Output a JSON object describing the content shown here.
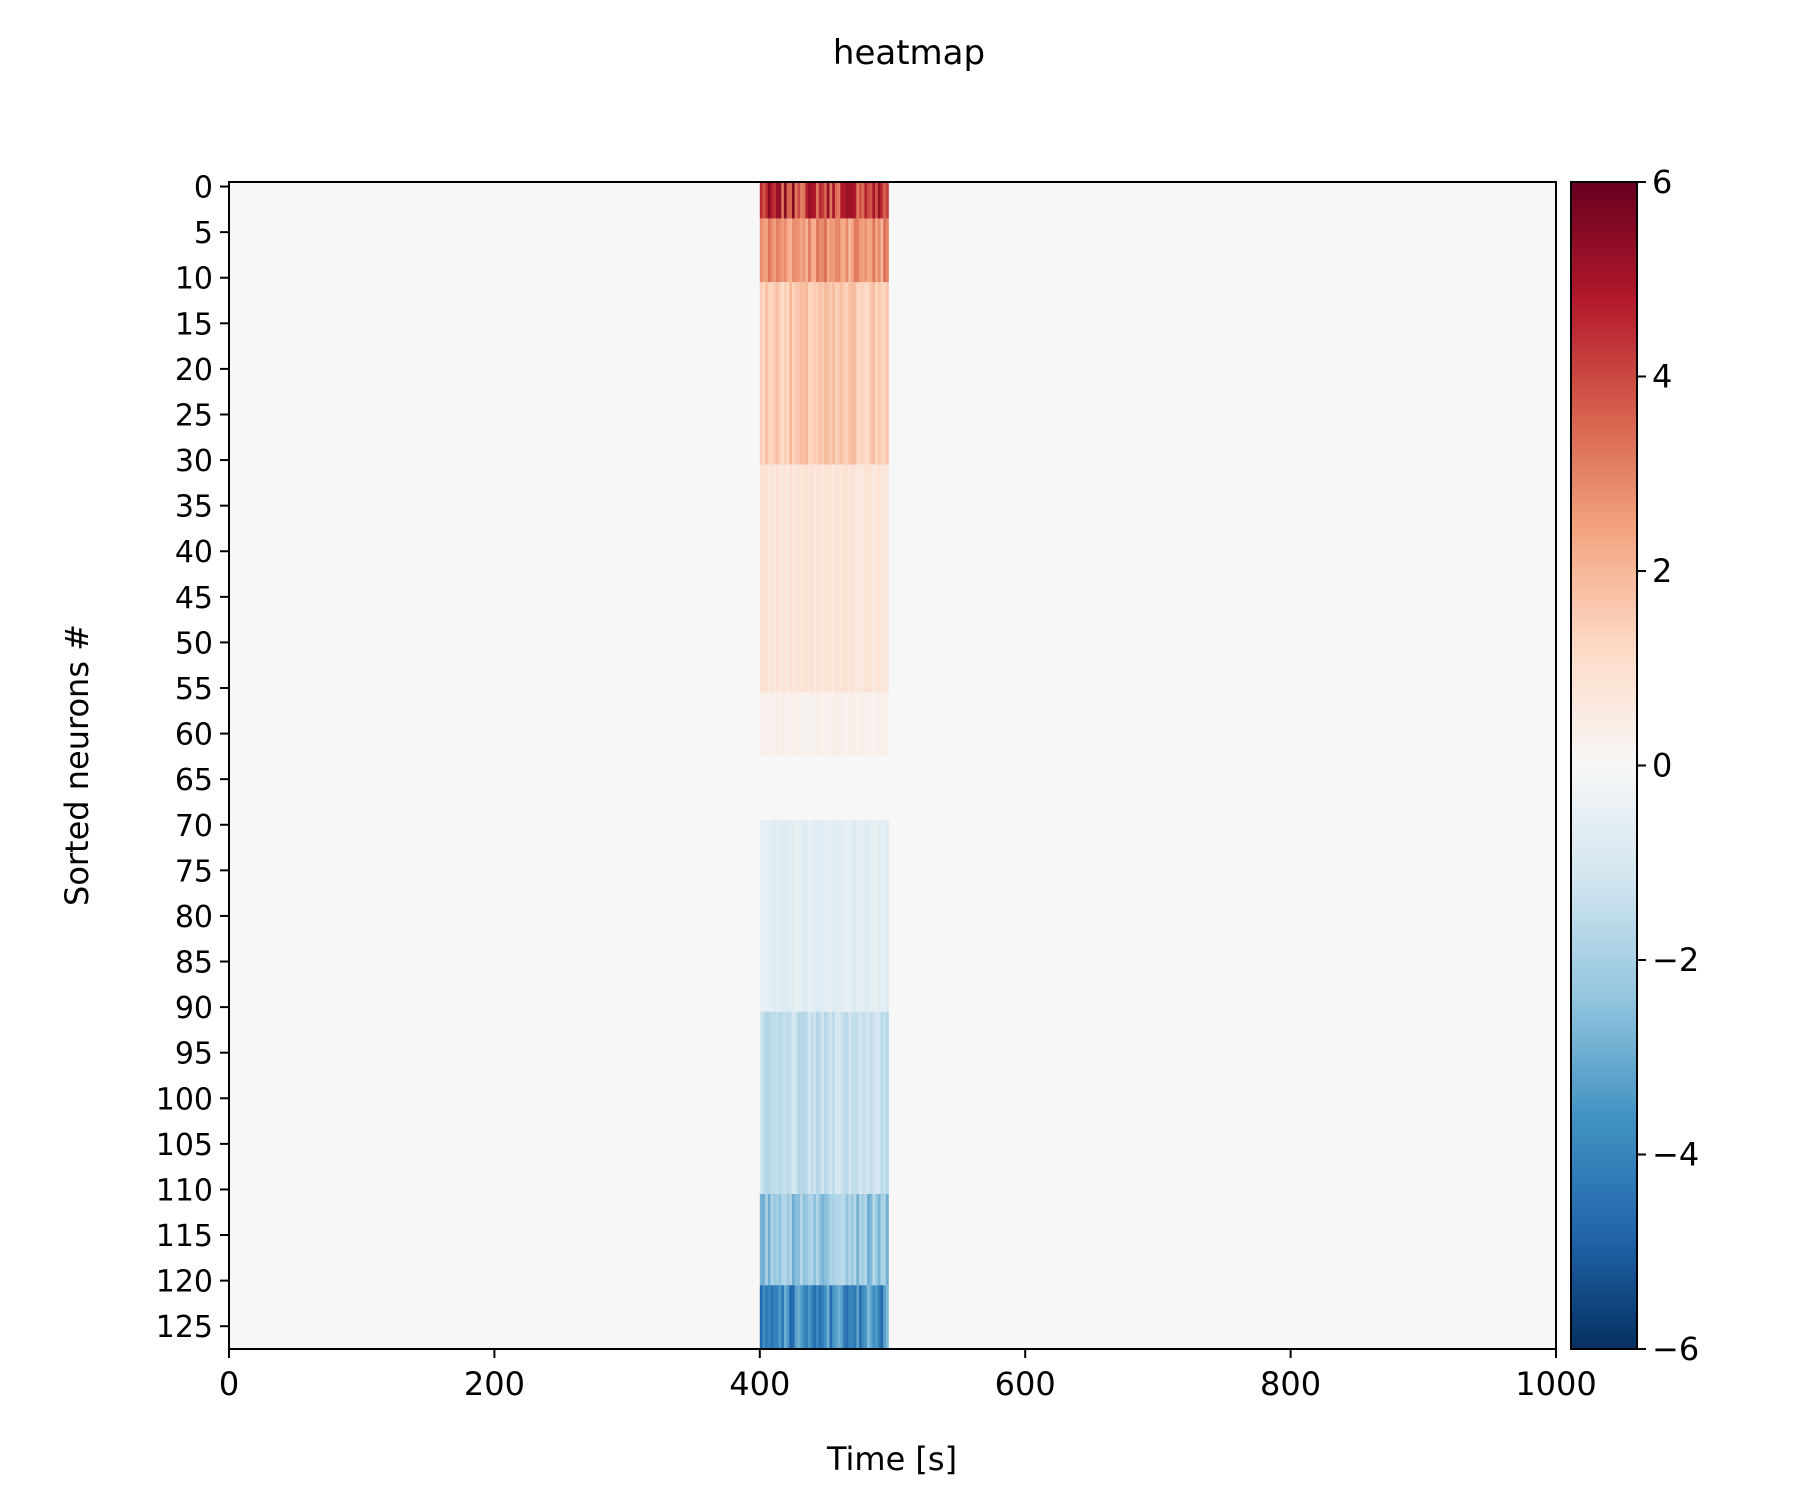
{
  "chart_data": {
    "type": "heatmap",
    "title": "heatmap",
    "xlabel": "Time [s]",
    "ylabel": "Sorted neurons #",
    "xlim": [
      0,
      1000
    ],
    "ylim": [
      0,
      127
    ],
    "y_inverted": true,
    "x_ticks": [
      "0",
      "200",
      "400",
      "600",
      "800",
      "1000"
    ],
    "y_ticks": [
      "0",
      "5",
      "10",
      "15",
      "20",
      "25",
      "30",
      "35",
      "40",
      "45",
      "50",
      "55",
      "60",
      "65",
      "70",
      "75",
      "80",
      "85",
      "90",
      "95",
      "100",
      "105",
      "110",
      "115",
      "120",
      "125"
    ],
    "n_neurons": 128,
    "colormap": "RdBu_r",
    "colormap_stops": [
      "#053061",
      "#2166ac",
      "#4393c3",
      "#92c5de",
      "#d1e5f0",
      "#f7f7f7",
      "#fddbc7",
      "#f4a582",
      "#d6604d",
      "#b2182b",
      "#67001f"
    ],
    "colorbar": {
      "vmin": -6,
      "vmax": 6,
      "ticks": [
        "6",
        "4",
        "2",
        "0",
        "−2",
        "−4",
        "−6"
      ]
    },
    "stimulus_window": [
      400,
      497
    ],
    "rows": [
      {
        "neurons": [
          0,
          3
        ],
        "peak_value": 5.5
      },
      {
        "neurons": [
          4,
          10
        ],
        "peak_value": 3.5
      },
      {
        "neurons": [
          11,
          30
        ],
        "peak_value": 2.0
      },
      {
        "neurons": [
          31,
          55
        ],
        "peak_value": 1.0
      },
      {
        "neurons": [
          56,
          62
        ],
        "peak_value": 0.4
      },
      {
        "neurons": [
          63,
          69
        ],
        "peak_value": 0.0
      },
      {
        "neurons": [
          70,
          90
        ],
        "peak_value": -0.8
      },
      {
        "neurons": [
          91,
          110
        ],
        "peak_value": -1.8
      },
      {
        "neurons": [
          111,
          120
        ],
        "peak_value": -3.0
      },
      {
        "neurons": [
          121,
          127
        ],
        "peak_value": -4.8
      }
    ],
    "baseline_value": 0.0,
    "legend": "colorbar-right"
  }
}
